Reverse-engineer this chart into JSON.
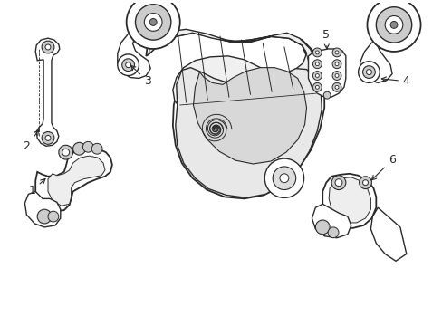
{
  "background_color": "#ffffff",
  "line_color": "#2a2a2a",
  "figsize": [
    4.89,
    3.6
  ],
  "dpi": 100,
  "xlim": [
    0,
    489
  ],
  "ylim": [
    0,
    360
  ]
}
